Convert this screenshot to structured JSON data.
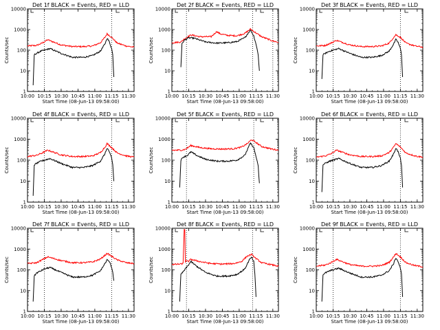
{
  "chart_data": [
    {
      "type": "line",
      "title": "Det 1f BLACK = Events, RED = LLD",
      "xlabel": "Start Time (08-Jun-13 09:58:00)",
      "ylabel": "Counts/sec",
      "yscale": "log",
      "ylim": [
        1,
        10000
      ],
      "xlim": [
        "10:00",
        "11:35"
      ],
      "xticks": [
        "10:00",
        "10:15",
        "10:30",
        "10:45",
        "11:00",
        "11:15",
        "11:30"
      ],
      "yticks": [
        "1",
        "10",
        "100",
        "1000",
        "10000"
      ],
      "vlines": [
        "10:15",
        "11:15"
      ],
      "series": [
        {
          "color": "#ff0000",
          "x": [
            "10:00",
            "10:08",
            "10:13",
            "10:18",
            "10:30",
            "10:40",
            "10:50",
            "10:58",
            "11:05",
            "11:09",
            "11:11",
            "11:15",
            "11:20",
            "11:28",
            "11:35"
          ],
          "values": [
            160,
            170,
            220,
            320,
            180,
            150,
            150,
            160,
            230,
            420,
            620,
            420,
            220,
            160,
            140
          ]
        },
        {
          "color": "#000000",
          "x": [
            "10:05",
            "10:06",
            "10:08",
            "10:12",
            "10:15",
            "10:20",
            "10:30",
            "10:40",
            "10:50",
            "10:58",
            "11:05",
            "11:09",
            "11:11",
            "11:13",
            "11:15",
            "11:16",
            "11:17"
          ],
          "values": [
            2,
            60,
            70,
            90,
            100,
            120,
            70,
            45,
            45,
            55,
            90,
            200,
            380,
            250,
            120,
            60,
            5
          ]
        }
      ]
    },
    {
      "type": "line",
      "title": "Det 2f BLACK = Events, RED = LLD",
      "xlabel": "Start Time (08-Jun-13 09:58:00)",
      "ylabel": "Counts/sec",
      "yscale": "log",
      "ylim": [
        1,
        10000
      ],
      "xlim": [
        "10:00",
        "11:35"
      ],
      "xticks": [
        "10:00",
        "10:15",
        "10:30",
        "10:45",
        "11:00",
        "11:15",
        "11:30"
      ],
      "yticks": [
        "1",
        "10",
        "100",
        "1000",
        "10000"
      ],
      "vlines": [
        "10:13",
        "11:12",
        "11:30"
      ],
      "series": [
        {
          "color": "#ff0000",
          "x": [
            "10:00",
            "10:08",
            "10:12",
            "10:17",
            "10:25",
            "10:35",
            "10:40",
            "10:43",
            "10:50",
            "10:58",
            "11:05",
            "11:10",
            "11:14",
            "11:20",
            "11:30",
            "11:35"
          ],
          "values": [
            230,
            250,
            380,
            550,
            450,
            450,
            800,
            620,
            520,
            500,
            650,
            1050,
            750,
            450,
            280,
            240
          ]
        },
        {
          "color": "#000000",
          "x": [
            "10:08",
            "10:09",
            "10:11",
            "10:15",
            "10:20",
            "10:30",
            "10:40",
            "10:50",
            "10:58",
            "11:05",
            "11:10",
            "11:13",
            "11:15",
            "11:17",
            "11:18"
          ],
          "values": [
            15,
            200,
            300,
            400,
            380,
            250,
            220,
            230,
            260,
            400,
            950,
            500,
            200,
            60,
            10
          ]
        }
      ]
    },
    {
      "type": "line",
      "title": "Det 3f BLACK = Events, RED = LLD",
      "xlabel": "Start Time (08-Jun-13 09:58:00)",
      "ylabel": "Counts/sec",
      "yscale": "log",
      "ylim": [
        1,
        10000
      ],
      "xlim": [
        "10:00",
        "11:35"
      ],
      "xticks": [
        "10:00",
        "10:15",
        "10:30",
        "10:45",
        "11:00",
        "11:15",
        "11:30"
      ],
      "yticks": [
        "1",
        "10",
        "100",
        "1000",
        "10000"
      ],
      "vlines": [
        "10:15",
        "11:15"
      ],
      "series": [
        {
          "color": "#ff0000",
          "x": [
            "10:00",
            "10:08",
            "10:13",
            "10:18",
            "10:30",
            "10:40",
            "10:50",
            "10:58",
            "11:05",
            "11:09",
            "11:11",
            "11:15",
            "11:20",
            "11:28",
            "11:35"
          ],
          "values": [
            160,
            170,
            220,
            300,
            180,
            150,
            150,
            160,
            220,
            420,
            560,
            420,
            220,
            160,
            140
          ]
        },
        {
          "color": "#000000",
          "x": [
            "10:05",
            "10:06",
            "10:08",
            "10:12",
            "10:15",
            "10:20",
            "10:30",
            "10:40",
            "10:50",
            "10:58",
            "11:05",
            "11:09",
            "11:11",
            "11:13",
            "11:15",
            "11:16",
            "11:17"
          ],
          "values": [
            4,
            60,
            70,
            90,
            100,
            120,
            70,
            45,
            45,
            55,
            90,
            200,
            330,
            240,
            120,
            60,
            5
          ]
        }
      ]
    },
    {
      "type": "line",
      "title": "Det 4f BLACK = Events, RED = LLD",
      "xlabel": "Start Time (08-Jun-13 09:58:00)",
      "ylabel": "Counts/sec",
      "yscale": "log",
      "ylim": [
        1,
        10000
      ],
      "xlim": [
        "10:00",
        "11:35"
      ],
      "xticks": [
        "10:00",
        "10:15",
        "10:30",
        "10:45",
        "11:00",
        "11:15",
        "11:30"
      ],
      "yticks": [
        "1",
        "10",
        "100",
        "1000",
        "10000"
      ],
      "vlines": [
        "10:15",
        "11:15"
      ],
      "series": [
        {
          "color": "#ff0000",
          "x": [
            "10:00",
            "10:08",
            "10:13",
            "10:18",
            "10:30",
            "10:40",
            "10:50",
            "10:58",
            "11:05",
            "11:09",
            "11:11",
            "11:15",
            "11:20",
            "11:28",
            "11:35"
          ],
          "values": [
            150,
            170,
            220,
            300,
            180,
            150,
            150,
            160,
            230,
            420,
            620,
            400,
            220,
            160,
            140
          ]
        },
        {
          "color": "#000000",
          "x": [
            "10:05",
            "10:06",
            "10:08",
            "10:12",
            "10:15",
            "10:20",
            "10:30",
            "10:40",
            "10:50",
            "10:58",
            "11:05",
            "11:09",
            "11:11",
            "11:13",
            "11:15",
            "11:16",
            "11:17"
          ],
          "values": [
            2,
            60,
            70,
            90,
            100,
            120,
            70,
            45,
            45,
            55,
            90,
            200,
            380,
            250,
            120,
            60,
            10
          ]
        }
      ]
    },
    {
      "type": "line",
      "title": "Det 5f BLACK = Events, RED = LLD",
      "xlabel": "Start Time (08-Jun-13 09:58:00)",
      "ylabel": "Counts/sec",
      "yscale": "log",
      "ylim": [
        1,
        10000
      ],
      "xlim": [
        "10:00",
        "11:35"
      ],
      "xticks": [
        "10:00",
        "10:15",
        "10:30",
        "10:45",
        "11:00",
        "11:15",
        "11:30"
      ],
      "yticks": [
        "1",
        "10",
        "100",
        "1000",
        "10000"
      ],
      "vlines": [
        "10:13",
        "11:13"
      ],
      "series": [
        {
          "color": "#ff0000",
          "x": [
            "10:00",
            "10:08",
            "10:12",
            "10:17",
            "10:25",
            "10:35",
            "10:45",
            "10:55",
            "11:02",
            "11:07",
            "11:11",
            "11:15",
            "11:20",
            "11:28",
            "11:35"
          ],
          "values": [
            300,
            300,
            330,
            500,
            400,
            350,
            340,
            350,
            420,
            600,
            950,
            700,
            450,
            350,
            300
          ]
        },
        {
          "color": "#000000",
          "x": [
            "10:07",
            "10:08",
            "10:10",
            "10:14",
            "10:17",
            "10:22",
            "10:30",
            "10:40",
            "10:50",
            "10:58",
            "11:05",
            "11:10",
            "11:13",
            "11:15",
            "11:17",
            "11:18"
          ],
          "values": [
            5,
            100,
            140,
            170,
            250,
            170,
            110,
            90,
            90,
            100,
            170,
            650,
            400,
            150,
            50,
            8
          ]
        }
      ]
    },
    {
      "type": "line",
      "title": "Det 6f BLACK = Events, RED = LLD",
      "xlabel": "Start Time (08-Jun-13 09:58:00)",
      "ylabel": "Counts/sec",
      "yscale": "log",
      "ylim": [
        1,
        10000
      ],
      "xlim": [
        "10:00",
        "11:35"
      ],
      "xticks": [
        "10:00",
        "10:15",
        "10:30",
        "10:45",
        "11:00",
        "11:15",
        "11:30"
      ],
      "yticks": [
        "1",
        "10",
        "100",
        "1000",
        "10000"
      ],
      "vlines": [
        "10:15",
        "11:15"
      ],
      "series": [
        {
          "color": "#ff0000",
          "x": [
            "10:00",
            "10:08",
            "10:13",
            "10:18",
            "10:30",
            "10:40",
            "10:50",
            "10:58",
            "11:05",
            "11:09",
            "11:11",
            "11:15",
            "11:20",
            "11:28",
            "11:35"
          ],
          "values": [
            140,
            160,
            200,
            300,
            180,
            150,
            150,
            160,
            230,
            420,
            620,
            420,
            220,
            160,
            140
          ]
        },
        {
          "color": "#000000",
          "x": [
            "10:05",
            "10:06",
            "10:08",
            "10:12",
            "10:15",
            "10:20",
            "10:30",
            "10:40",
            "10:50",
            "10:58",
            "11:05",
            "11:09",
            "11:11",
            "11:13",
            "11:15",
            "11:16",
            "11:17"
          ],
          "values": [
            3,
            60,
            70,
            90,
            100,
            120,
            70,
            45,
            45,
            55,
            90,
            200,
            380,
            250,
            120,
            60,
            5
          ]
        }
      ]
    },
    {
      "type": "line",
      "title": "Det 7f BLACK = Events, RED = LLD",
      "xlabel": "Start Time (08-Jun-13 09:58:00)",
      "ylabel": "Counts/sec",
      "yscale": "log",
      "ylim": [
        1,
        10000
      ],
      "xlim": [
        "10:00",
        "11:35"
      ],
      "xticks": [
        "10:00",
        "10:15",
        "10:30",
        "10:45",
        "11:00",
        "11:15",
        "11:30"
      ],
      "yticks": [
        "1",
        "10",
        "100",
        "1000",
        "10000"
      ],
      "vlines": [
        "10:15",
        "11:15"
      ],
      "series": [
        {
          "color": "#ff0000",
          "x": [
            "10:00",
            "10:08",
            "10:13",
            "10:18",
            "10:30",
            "10:40",
            "10:50",
            "10:58",
            "11:05",
            "11:09",
            "11:11",
            "11:15",
            "11:20",
            "11:28",
            "11:35"
          ],
          "values": [
            200,
            220,
            300,
            420,
            280,
            220,
            220,
            240,
            330,
            500,
            620,
            450,
            300,
            220,
            200
          ]
        },
        {
          "color": "#000000",
          "x": [
            "10:05",
            "10:06",
            "10:08",
            "10:12",
            "10:15",
            "10:20",
            "10:30",
            "10:40",
            "10:50",
            "10:58",
            "11:05",
            "11:09",
            "11:11",
            "11:13",
            "11:15",
            "11:16",
            "11:17"
          ],
          "values": [
            3,
            50,
            70,
            90,
            110,
            130,
            75,
            45,
            45,
            55,
            90,
            200,
            300,
            250,
            130,
            80,
            30
          ]
        }
      ]
    },
    {
      "type": "line",
      "title": "Det 8f BLACK = Events, RED = LLD",
      "xlabel": "Start Time (08-Jun-13 09:58:00)",
      "ylabel": "Counts/sec",
      "yscale": "log",
      "ylim": [
        1,
        10000
      ],
      "xlim": [
        "10:00",
        "11:35"
      ],
      "xticks": [
        "10:00",
        "10:15",
        "10:30",
        "10:45",
        "11:00",
        "11:15",
        "11:30"
      ],
      "yticks": [
        "1",
        "10",
        "100",
        "1000",
        "10000"
      ],
      "vlines": [
        "10:13",
        "11:12"
      ],
      "series": [
        {
          "color": "#ff0000",
          "x": [
            "10:00",
            "10:08",
            "10:10",
            "10:11",
            "10:11.5",
            "10:12",
            "10:13",
            "10:15",
            "10:17",
            "10:25",
            "10:35",
            "10:45",
            "10:55",
            "11:02",
            "11:07",
            "11:11",
            "11:15",
            "11:20",
            "11:28",
            "11:35"
          ],
          "values": [
            180,
            190,
            200,
            9000,
            9000,
            250,
            260,
            260,
            320,
            250,
            200,
            190,
            200,
            250,
            450,
            550,
            350,
            220,
            180,
            150
          ]
        },
        {
          "color": "#000000",
          "x": [
            "10:07",
            "10:08",
            "10:10",
            "10:14",
            "10:17",
            "10:22",
            "10:30",
            "10:40",
            "10:50",
            "10:58",
            "11:05",
            "11:09",
            "11:11",
            "11:13",
            "11:14",
            "11:15"
          ],
          "values": [
            3,
            60,
            80,
            150,
            250,
            150,
            75,
            50,
            50,
            60,
            110,
            300,
            400,
            250,
            60,
            5
          ]
        }
      ]
    },
    {
      "type": "line",
      "title": "Det 9f BLACK = Events, RED = LLD",
      "xlabel": "Start Time (08-Jun-13 09:58:00)",
      "ylabel": "Counts/sec",
      "yscale": "log",
      "ylim": [
        1,
        10000
      ],
      "xlim": [
        "10:00",
        "11:35"
      ],
      "xticks": [
        "10:00",
        "10:15",
        "10:30",
        "10:45",
        "11:00",
        "11:15",
        "11:30"
      ],
      "yticks": [
        "1",
        "10",
        "100",
        "1000",
        "10000"
      ],
      "vlines": [
        "10:15",
        "11:15"
      ],
      "series": [
        {
          "color": "#ff0000",
          "x": [
            "10:00",
            "10:08",
            "10:13",
            "10:18",
            "10:30",
            "10:40",
            "10:50",
            "10:58",
            "11:05",
            "11:09",
            "11:11",
            "11:15",
            "11:20",
            "11:28",
            "11:35"
          ],
          "values": [
            150,
            170,
            220,
            320,
            180,
            150,
            150,
            160,
            230,
            420,
            620,
            420,
            220,
            160,
            140
          ]
        },
        {
          "color": "#000000",
          "x": [
            "10:05",
            "10:06",
            "10:08",
            "10:12",
            "10:15",
            "10:20",
            "10:30",
            "10:40",
            "10:50",
            "10:58",
            "11:05",
            "11:09",
            "11:11",
            "11:13",
            "11:15",
            "11:16",
            "11:17"
          ],
          "values": [
            3,
            60,
            70,
            90,
            100,
            120,
            70,
            45,
            45,
            55,
            90,
            200,
            380,
            250,
            120,
            60,
            5
          ]
        }
      ]
    }
  ]
}
